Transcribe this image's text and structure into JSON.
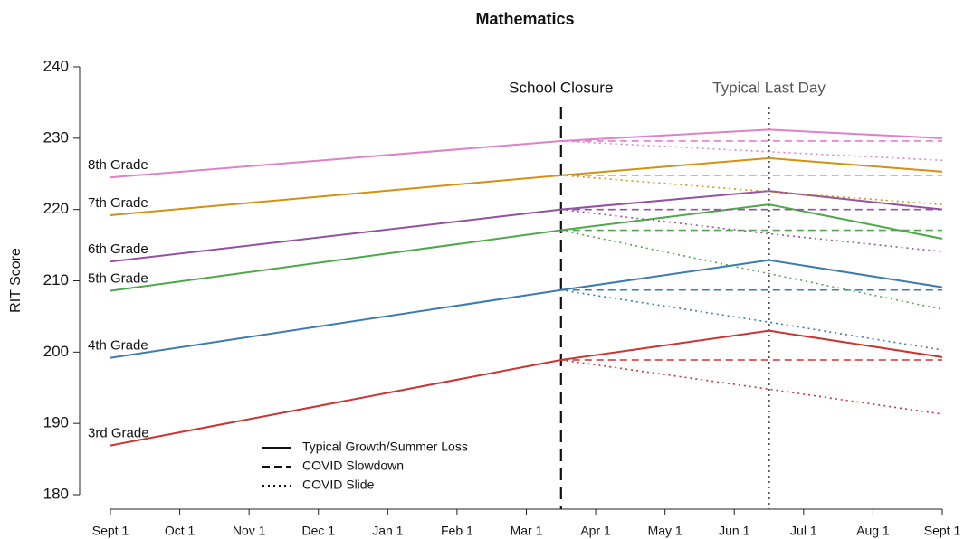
{
  "chart_data": {
    "type": "line",
    "title": "Mathematics",
    "y_label": "RIT Score",
    "x": [
      0,
      6.5,
      9.5,
      12
    ],
    "xlim": [
      0,
      12
    ],
    "xticks": [
      {
        "value": 0,
        "label": "Sept 1"
      },
      {
        "value": 1,
        "label": "Oct 1"
      },
      {
        "value": 2,
        "label": "Nov 1"
      },
      {
        "value": 3,
        "label": "Dec 1"
      },
      {
        "value": 4,
        "label": "Jan 1"
      },
      {
        "value": 5,
        "label": "Feb 1"
      },
      {
        "value": 6,
        "label": "Mar 1"
      },
      {
        "value": 7,
        "label": "Apr 1"
      },
      {
        "value": 8,
        "label": "May 1"
      },
      {
        "value": 9,
        "label": "Jun 1"
      },
      {
        "value": 10,
        "label": "Jul 1"
      },
      {
        "value": 11,
        "label": "Aug 1"
      },
      {
        "value": 12,
        "label": "Sept 1"
      }
    ],
    "ylim": [
      180,
      240
    ],
    "yticks": [
      180,
      190,
      200,
      210,
      220,
      230,
      240
    ],
    "vlines": [
      {
        "x": 6.5,
        "label": "School Closure",
        "style": "dashed",
        "color": "#111111"
      },
      {
        "x": 9.5,
        "label": "Typical Last Day",
        "style": "dotted",
        "color": "#555555"
      }
    ],
    "line_styles": [
      {
        "label": "Typical Growth/Summer Loss",
        "style": "solid"
      },
      {
        "label": "COVID Slowdown",
        "style": "dashed"
      },
      {
        "label": "COVID Slide",
        "style": "dotted"
      }
    ],
    "series": [
      {
        "name": "3rd Grade",
        "color": "#cc3333",
        "typical": [
          186.9,
          198.9,
          203.0,
          199.3
        ],
        "slowdown": [
          null,
          198.9,
          198.9,
          198.9
        ],
        "slide": [
          null,
          198.9,
          194.8,
          191.3
        ]
      },
      {
        "name": "4th Grade",
        "color": "#3b7bb0",
        "typical": [
          199.2,
          208.7,
          212.9,
          209.1
        ],
        "slowdown": [
          null,
          208.7,
          208.7,
          208.7
        ],
        "slide": [
          null,
          208.7,
          204.2,
          200.3
        ]
      },
      {
        "name": "5th Grade",
        "color": "#4da84a",
        "typical": [
          208.6,
          217.1,
          220.7,
          215.9
        ],
        "slowdown": [
          null,
          217.1,
          217.1,
          217.1
        ],
        "slide": [
          null,
          217.1,
          211.0,
          206.0
        ]
      },
      {
        "name": "6th Grade",
        "color": "#9450a3",
        "typical": [
          212.7,
          220.0,
          222.6,
          220.0
        ],
        "slowdown": [
          null,
          220.0,
          220.0,
          220.0
        ],
        "slide": [
          null,
          220.0,
          216.6,
          214.1
        ]
      },
      {
        "name": "7th Grade",
        "color": "#d4900f",
        "typical": [
          219.2,
          224.8,
          227.2,
          225.3
        ],
        "slowdown": [
          null,
          224.8,
          224.8,
          224.8
        ],
        "slide": [
          null,
          224.8,
          222.5,
          220.7
        ]
      },
      {
        "name": "8th Grade",
        "color": "#e080c8",
        "typical": [
          224.5,
          229.6,
          231.2,
          230.0
        ],
        "slowdown": [
          null,
          229.6,
          229.6,
          229.6
        ],
        "slide": [
          null,
          229.6,
          228.1,
          226.9
        ]
      }
    ]
  }
}
